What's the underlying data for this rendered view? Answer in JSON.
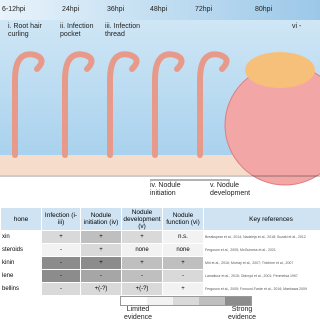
{
  "timeline": [
    "6-12hpi",
    "24hpi",
    "36hpi",
    "48hpi",
    "72hpi",
    "80hpi"
  ],
  "stages": [
    "i. Root hair curling",
    "ii. Infection pocket",
    "iii. Infection thread",
    "vi -"
  ],
  "bottom_stages": [
    "iv. Nodule initiation",
    "v. Nodule development"
  ],
  "table": {
    "header": [
      "hone",
      "Infection (i-iii)",
      "Nodule initiation (iv)",
      "Nodule development (v)",
      "Nodule function (vi)",
      "Key references"
    ],
    "rows": [
      [
        "xin",
        "+",
        "+",
        "+",
        "n.s.",
        "Breakspear et al., 2014; Nadzieja et al., 2018; Suzaki et al., 2012"
      ],
      [
        "steroids",
        "-",
        "+",
        "none",
        "none",
        "Ferguson et al., 2005; McGuiness et al., 2021"
      ],
      [
        "kinin",
        "-",
        "+",
        "+",
        "+",
        "Miri et al., 2016; Murray et al., 2007; Tirichine et al., 2007"
      ],
      [
        "lene",
        "-",
        "-",
        "-",
        "-",
        "Lamaitour et al., 2015; Oldroyd et al., 2001; Penmetsa 1997"
      ],
      [
        "bellins",
        "-",
        "+(-?)",
        "+(-?)",
        "+",
        "Ferguson et al., 2005; Fonouni-Farde et al., 2016; Maekawa 2009"
      ]
    ],
    "cell_colors": [
      [
        "#ffffff",
        "#d9d9d9",
        "#bfbfbf",
        "#d9d9d9",
        "#f2f2f2"
      ],
      [
        "#ffffff",
        "#f2f2f2",
        "#d9d9d9",
        "#f2f2f2",
        "#f2f2f2"
      ],
      [
        "#ffffff",
        "#8c8c8c",
        "#8c8c8c",
        "#bfbfbf",
        "#bfbfbf"
      ],
      [
        "#ffffff",
        "#8c8c8c",
        "#a6a6a6",
        "#bfbfbf",
        "#d9d9d9"
      ],
      [
        "#ffffff",
        "#d9d9d9",
        "#d9d9d9",
        "#d9d9d9",
        "#f2f2f2"
      ]
    ]
  },
  "legend": {
    "low": "Limited evidence",
    "high": "Strong evidence",
    "colors": [
      "#ffffff",
      "#f2f2f2",
      "#d9d9d9",
      "#bfbfbf",
      "#8c8c8c"
    ]
  }
}
